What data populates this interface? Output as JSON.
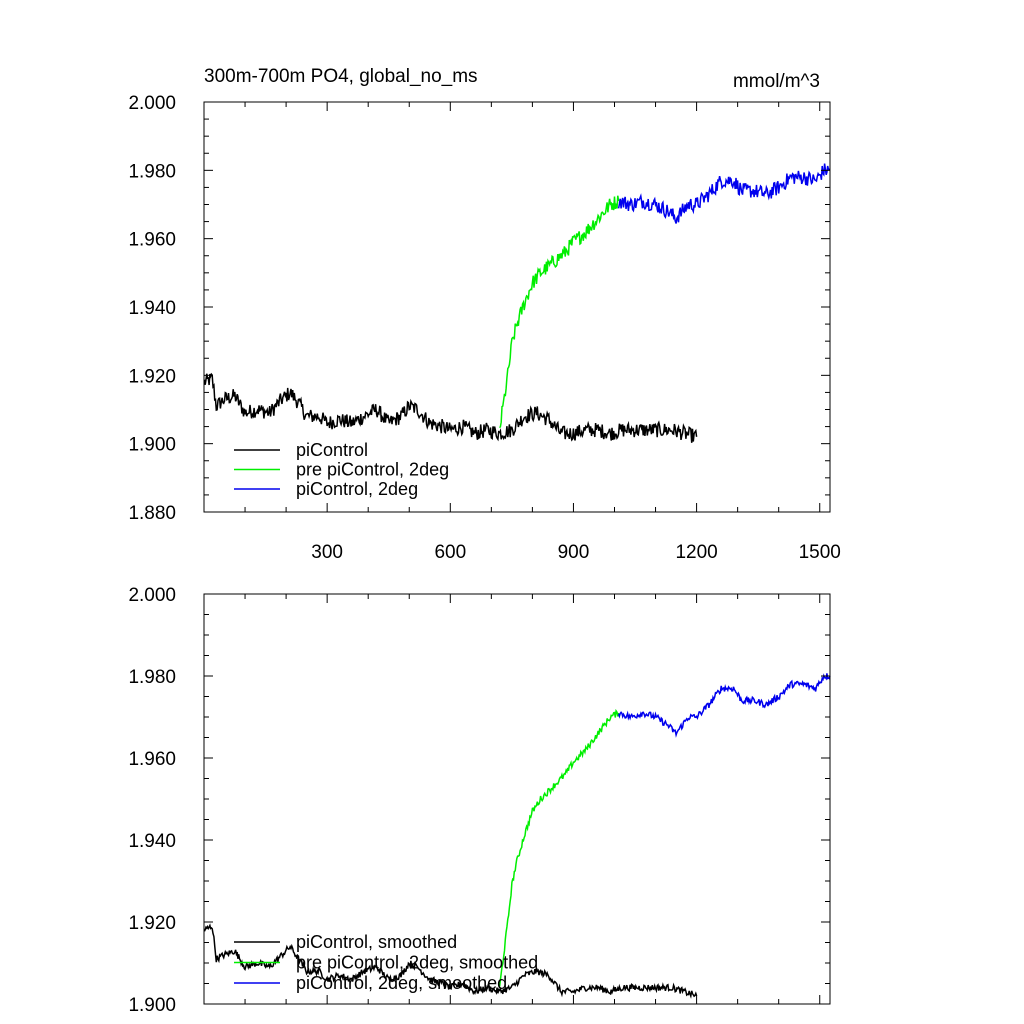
{
  "chart_data": [
    {
      "type": "line",
      "title": "300m-700m PO4, global_no_ms",
      "units": "mmol/m^3",
      "xlim": [
        0,
        1525
      ],
      "ylim": [
        1.88,
        2.0
      ],
      "xticks": [
        "300",
        "600",
        "900",
        "1200",
        "1500"
      ],
      "yticks": [
        "1.880",
        "1.900",
        "1.920",
        "1.940",
        "1.960",
        "1.980",
        "2.000"
      ],
      "legend": "lower-left",
      "series": [
        {
          "name": "piControl",
          "color": "#000000",
          "x": [
            1,
            20,
            30,
            50,
            75,
            100,
            130,
            160,
            190,
            210,
            230,
            250,
            280,
            300,
            330,
            360,
            390,
            420,
            450,
            480,
            500,
            520,
            550,
            580,
            600,
            630,
            660,
            690,
            720,
            750,
            780,
            810,
            840,
            870,
            900,
            930,
            960,
            990,
            1020,
            1050,
            1080,
            1110,
            1140,
            1170,
            1200
          ],
          "y": [
            1.918,
            1.919,
            1.911,
            1.913,
            1.914,
            1.909,
            1.91,
            1.909,
            1.913,
            1.915,
            1.912,
            1.908,
            1.908,
            1.906,
            1.907,
            1.906,
            1.908,
            1.91,
            1.906,
            1.908,
            1.911,
            1.91,
            1.906,
            1.905,
            1.904,
            1.905,
            1.903,
            1.904,
            1.903,
            1.904,
            1.908,
            1.909,
            1.907,
            1.903,
            1.903,
            1.904,
            1.904,
            1.903,
            1.904,
            1.904,
            1.904,
            1.904,
            1.904,
            1.903,
            1.902
          ]
        },
        {
          "name": "pre piControl, 2deg",
          "color": "#00ee00",
          "x": [
            720,
            730,
            740,
            750,
            760,
            780,
            800,
            820,
            840,
            860,
            880,
            900,
            930,
            960,
            990,
            1010
          ],
          "y": [
            1.904,
            1.912,
            1.92,
            1.929,
            1.934,
            1.941,
            1.947,
            1.95,
            1.952,
            1.954,
            1.956,
            1.959,
            1.962,
            1.966,
            1.97,
            1.971
          ]
        },
        {
          "name": "piControl, 2deg",
          "color": "#0000ee",
          "x": [
            1010,
            1040,
            1070,
            1100,
            1130,
            1150,
            1180,
            1200,
            1230,
            1260,
            1290,
            1310,
            1340,
            1370,
            1400,
            1430,
            1460,
            1490,
            1510,
            1525
          ],
          "y": [
            1.971,
            1.97,
            1.971,
            1.97,
            1.968,
            1.966,
            1.97,
            1.97,
            1.973,
            1.977,
            1.977,
            1.974,
            1.974,
            1.973,
            1.975,
            1.978,
            1.978,
            1.977,
            1.98,
            1.98
          ]
        }
      ]
    },
    {
      "type": "line",
      "xlim": [
        0,
        1525
      ],
      "ylim": [
        1.9,
        2.0
      ],
      "yticks": [
        "1.900",
        "1.920",
        "1.940",
        "1.960",
        "1.980",
        "2.000"
      ],
      "legend": "lower-left",
      "series": [
        {
          "name": "piControl, smoothed",
          "color": "#000000",
          "x": [
            1,
            20,
            30,
            50,
            75,
            100,
            130,
            160,
            190,
            210,
            230,
            250,
            280,
            300,
            330,
            360,
            390,
            420,
            450,
            480,
            500,
            520,
            550,
            580,
            600,
            630,
            660,
            690,
            720,
            750,
            780,
            810,
            840,
            870,
            900,
            930,
            960,
            990,
            1020,
            1050,
            1080,
            1110,
            1140,
            1170,
            1200
          ],
          "y": [
            1.918,
            1.919,
            1.911,
            1.912,
            1.913,
            1.909,
            1.91,
            1.909,
            1.912,
            1.914,
            1.911,
            1.908,
            1.908,
            1.906,
            1.907,
            1.906,
            1.908,
            1.909,
            1.906,
            1.907,
            1.91,
            1.909,
            1.906,
            1.905,
            1.904,
            1.905,
            1.903,
            1.904,
            1.903,
            1.904,
            1.907,
            1.908,
            1.907,
            1.903,
            1.903,
            1.904,
            1.904,
            1.903,
            1.904,
            1.904,
            1.904,
            1.904,
            1.904,
            1.903,
            1.902
          ]
        },
        {
          "name": "pre piControl, 2deg, smoothed",
          "color": "#00ee00",
          "x": [
            720,
            730,
            740,
            750,
            760,
            780,
            800,
            820,
            840,
            860,
            880,
            900,
            930,
            960,
            990,
            1010
          ],
          "y": [
            1.904,
            1.912,
            1.92,
            1.929,
            1.934,
            1.941,
            1.947,
            1.95,
            1.952,
            1.954,
            1.956,
            1.959,
            1.962,
            1.966,
            1.97,
            1.971
          ]
        },
        {
          "name": "piControl, 2deg, smoothed",
          "color": "#0000ee",
          "x": [
            1010,
            1040,
            1070,
            1100,
            1130,
            1150,
            1180,
            1200,
            1230,
            1260,
            1290,
            1310,
            1340,
            1370,
            1400,
            1430,
            1460,
            1490,
            1510,
            1525
          ],
          "y": [
            1.971,
            1.97,
            1.971,
            1.97,
            1.968,
            1.966,
            1.97,
            1.97,
            1.973,
            1.977,
            1.977,
            1.974,
            1.974,
            1.973,
            1.975,
            1.978,
            1.978,
            1.977,
            1.98,
            1.98
          ]
        }
      ]
    }
  ]
}
